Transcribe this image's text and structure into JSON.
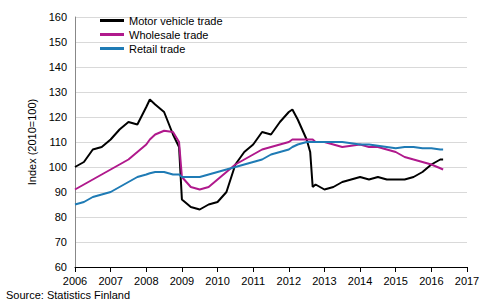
{
  "chart_data": {
    "type": "line",
    "y_label": "Index (2010=100)",
    "source": "Source: Statistics Finland",
    "x": [
      2006.0,
      2006.25,
      2006.5,
      2006.75,
      2007.0,
      2007.25,
      2007.5,
      2007.75,
      2008.0,
      2008.1,
      2008.25,
      2008.5,
      2008.75,
      2008.92,
      2009.0,
      2009.25,
      2009.5,
      2009.75,
      2010.0,
      2010.25,
      2010.5,
      2010.75,
      2011.0,
      2011.25,
      2011.5,
      2011.75,
      2012.0,
      2012.1,
      2012.25,
      2012.5,
      2012.6,
      2012.67,
      2012.75,
      2013.0,
      2013.25,
      2013.5,
      2013.75,
      2014.0,
      2014.25,
      2014.5,
      2014.75,
      2015.0,
      2015.25,
      2015.5,
      2015.75,
      2016.0,
      2016.25,
      2016.33
    ],
    "series": [
      {
        "name": "Motor vehicle trade",
        "color": "#000000",
        "values": [
          100,
          102,
          107,
          108,
          111,
          115,
          118,
          117,
          124,
          127,
          125,
          122,
          113,
          108,
          87,
          84,
          83,
          85,
          86,
          90,
          101,
          106,
          109,
          114,
          113,
          118,
          122,
          123,
          119,
          111,
          106,
          92,
          93,
          91,
          92,
          94,
          95,
          96,
          95,
          96,
          95,
          95,
          95,
          96,
          98,
          101,
          103,
          103
        ]
      },
      {
        "name": "Wholesale trade",
        "color": "#b0198c",
        "values": [
          91,
          93,
          95,
          97,
          99,
          101,
          103,
          106,
          109,
          111,
          113,
          114.5,
          114,
          110,
          96,
          92,
          91,
          92,
          95,
          98,
          101,
          103,
          105,
          107,
          108,
          109,
          110,
          111,
          111,
          111,
          111,
          111,
          110,
          110,
          109,
          108,
          108.5,
          109,
          108,
          108,
          107,
          106,
          104,
          103,
          102,
          101,
          99.5,
          99
        ]
      },
      {
        "name": "Retail trade",
        "color": "#1f7bb5",
        "values": [
          85,
          86,
          88,
          89,
          90,
          92,
          94,
          96,
          97,
          97.5,
          98,
          98,
          97,
          97,
          96,
          96,
          96,
          97,
          98,
          99,
          100,
          101,
          102,
          103,
          105,
          106,
          107,
          108,
          109,
          110,
          110,
          110,
          110,
          110,
          110,
          110,
          109.5,
          109,
          109,
          108.5,
          108,
          107.5,
          108,
          108,
          107.5,
          107.5,
          107,
          107
        ]
      }
    ],
    "xlim": [
      2006,
      2017
    ],
    "xticks": [
      2006,
      2007,
      2008,
      2009,
      2010,
      2011,
      2012,
      2013,
      2014,
      2015,
      2016,
      2017
    ],
    "ylim": [
      60,
      160
    ],
    "yticks": [
      60,
      70,
      80,
      90,
      100,
      110,
      120,
      130,
      140,
      150,
      160
    ],
    "grid": true,
    "legend": "upper left"
  }
}
